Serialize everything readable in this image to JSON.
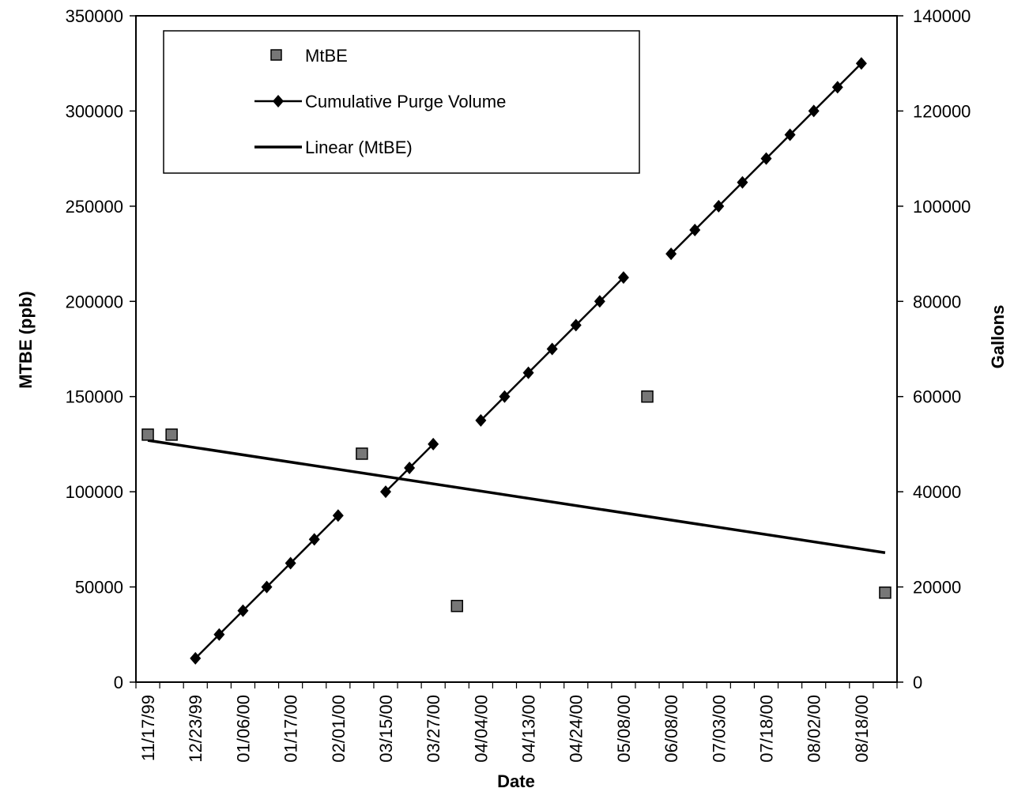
{
  "chart_data": {
    "type": "line",
    "xlabel": "Date",
    "ylabel": "MTBE (ppb)",
    "y2label": "Gallons",
    "x_tick_labels": [
      "11/17/99",
      "12/23/99",
      "01/06/00",
      "01/17/00",
      "02/01/00",
      "03/15/00",
      "03/27/00",
      "04/04/00",
      "04/13/00",
      "04/24/00",
      "05/08/00",
      "06/08/00",
      "07/03/00",
      "07/18/00",
      "08/02/00",
      "08/18/00"
    ],
    "ylim": [
      0,
      350000
    ],
    "y_ticks": [
      0,
      50000,
      100000,
      150000,
      200000,
      250000,
      300000,
      350000
    ],
    "y2lim": [
      0,
      140000
    ],
    "y2_ticks": [
      0,
      20000,
      40000,
      60000,
      80000,
      100000,
      120000,
      140000
    ],
    "grid": false,
    "legend_position": "top-left",
    "x_slots": 32,
    "series": [
      {
        "name": "MtBE",
        "marker": "square",
        "axis": "left",
        "points": [
          [
            0,
            130000
          ],
          [
            1,
            130000
          ],
          [
            9,
            120000
          ],
          [
            13,
            40000
          ],
          [
            21,
            150000
          ],
          [
            31,
            47000
          ]
        ]
      },
      {
        "name": "Cumulative Purge Volume",
        "marker": "diamond",
        "axis": "right",
        "segments": [
          [
            [
              2,
              5000
            ],
            [
              3,
              10000
            ],
            [
              4,
              15000
            ],
            [
              5,
              20000
            ],
            [
              6,
              25000
            ],
            [
              7,
              30000
            ],
            [
              8,
              35000
            ]
          ],
          [
            [
              10,
              40000
            ],
            [
              11,
              45000
            ],
            [
              12,
              50000
            ]
          ],
          [
            [
              14,
              55000
            ],
            [
              15,
              60000
            ],
            [
              16,
              65000
            ],
            [
              17,
              70000
            ],
            [
              18,
              75000
            ],
            [
              19,
              80000
            ],
            [
              20,
              85000
            ]
          ],
          [
            [
              22,
              90000
            ],
            [
              23,
              95000
            ],
            [
              24,
              100000
            ],
            [
              25,
              105000
            ],
            [
              26,
              110000
            ],
            [
              27,
              115000
            ],
            [
              28,
              120000
            ],
            [
              29,
              125000
            ],
            [
              30,
              130000
            ]
          ]
        ]
      },
      {
        "name": "Linear (MtBE)",
        "marker": "none",
        "axis": "left",
        "points": [
          [
            0,
            127000
          ],
          [
            31,
            68000
          ]
        ]
      }
    ]
  }
}
